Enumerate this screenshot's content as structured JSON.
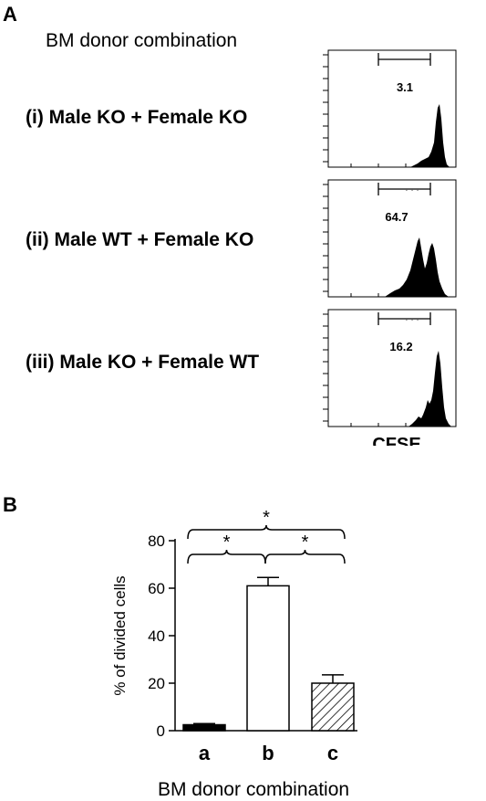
{
  "panel_a": {
    "letter": "A",
    "title": "BM donor combination",
    "rows": [
      {
        "label": "(i) Male KO + Female KO",
        "gate_value": "3.1"
      },
      {
        "label": "(ii) Male WT + Female KO",
        "gate_value": "64.7"
      },
      {
        "label": "(iii) Male KO + Female WT",
        "gate_value": "16.2"
      }
    ],
    "xlabel": "CFSE"
  },
  "panel_b": {
    "letter": "B",
    "sig": "*"
  },
  "chart_data": [
    {
      "type": "bar",
      "categories": [
        "a",
        "b",
        "c"
      ],
      "values": [
        2.5,
        61,
        20
      ],
      "errors": [
        0.5,
        3.5,
        3.5
      ],
      "bar_fills": [
        "solid",
        "open",
        "hatched"
      ],
      "ylabel": "% of divided cells",
      "xlabel": "BM donor combination",
      "ylim": [
        0,
        80
      ],
      "yticks": [
        0,
        20,
        40,
        60,
        80
      ],
      "significance": [
        {
          "pair": [
            "a",
            "c"
          ],
          "label": "*"
        },
        {
          "pair": [
            "a",
            "b"
          ],
          "label": "*"
        },
        {
          "pair": [
            "b",
            "c"
          ],
          "label": "*"
        }
      ]
    }
  ]
}
